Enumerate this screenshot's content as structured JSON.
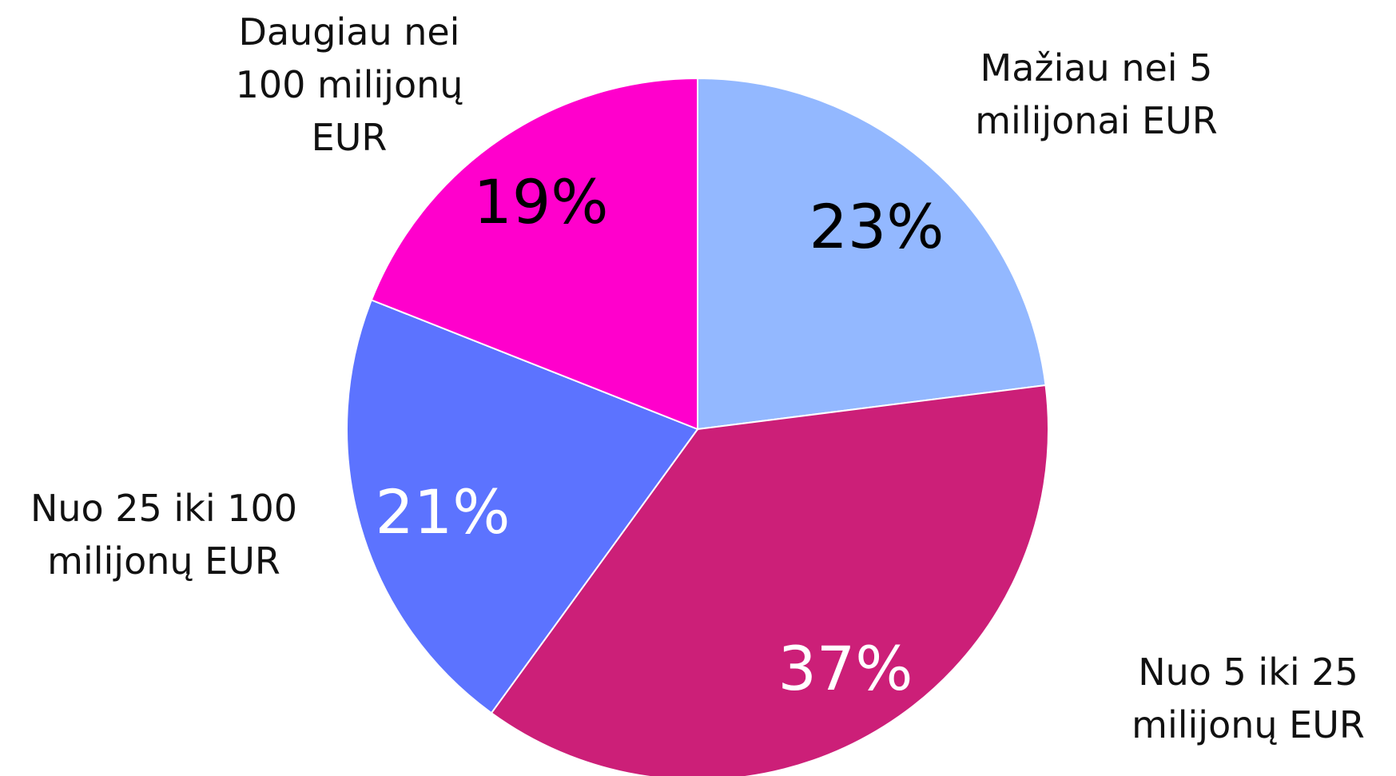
{
  "chart_data": {
    "type": "pie",
    "categories": [
      "Mažiau nei 5 milijonai EUR",
      "Nuo 5 iki 25 milijonų EUR",
      "Nuo 25 iki 100 milijonų EUR",
      "Daugiau nei 100 milijonų EUR"
    ],
    "values": [
      23,
      37,
      21,
      19
    ],
    "value_labels": [
      "23%",
      "37%",
      "21%",
      "19%"
    ],
    "colors": [
      "#93b8ff",
      "#cc1f78",
      "#5c73ff",
      "#ff00cc"
    ],
    "label_colors": [
      "#000000",
      "#ffffff",
      "#ffffff",
      "#000000"
    ]
  }
}
